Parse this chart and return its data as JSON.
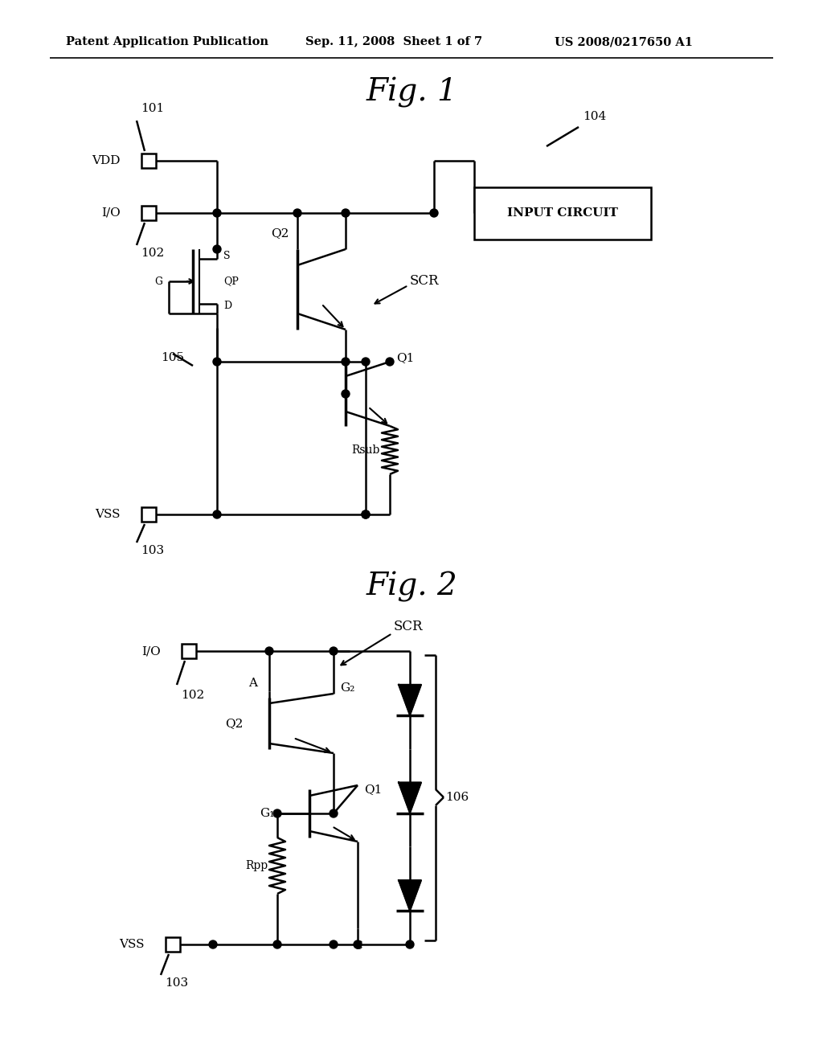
{
  "bg_color": "#ffffff",
  "line_color": "#000000",
  "header_left": "Patent Application Publication",
  "header_mid": "Sep. 11, 2008  Sheet 1 of 7",
  "header_right": "US 2008/0217650 A1",
  "fig1_title": "Fig. 1",
  "fig2_title": "Fig. 2",
  "font_family": "DejaVu Serif"
}
